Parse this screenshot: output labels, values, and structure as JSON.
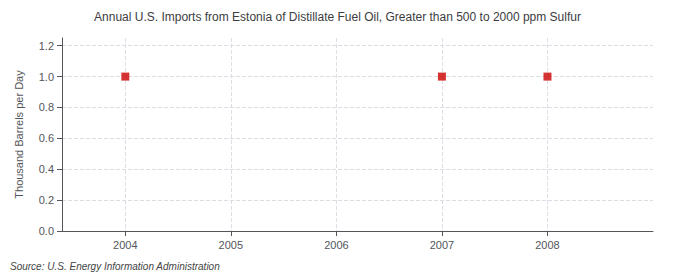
{
  "chart_data": {
    "type": "scatter",
    "title": "Annual U.S. Imports from Estonia of Distillate Fuel Oil, Greater than 500 to 2000 ppm Sulfur",
    "ylabel": "Thousand Barrels per Day",
    "annotations": [
      "Source: U.S. Energy Information Administration"
    ],
    "x": [
      2004,
      2007,
      2008
    ],
    "values": [
      1.0,
      1.0,
      1.0
    ],
    "color": "#CC0000",
    "marker": "square",
    "xlim": [
      2003.4,
      2009.0
    ],
    "ylim": [
      0.0,
      1.25
    ],
    "xticks": [
      2004,
      2005,
      2006,
      2007,
      2008
    ],
    "yticks": [
      {
        "value": 0,
        "label": "0.0"
      },
      0.2,
      0.4,
      0.6,
      0.8,
      {
        "value": 1,
        "label": "1.0"
      },
      1.2
    ],
    "grid": true
  }
}
